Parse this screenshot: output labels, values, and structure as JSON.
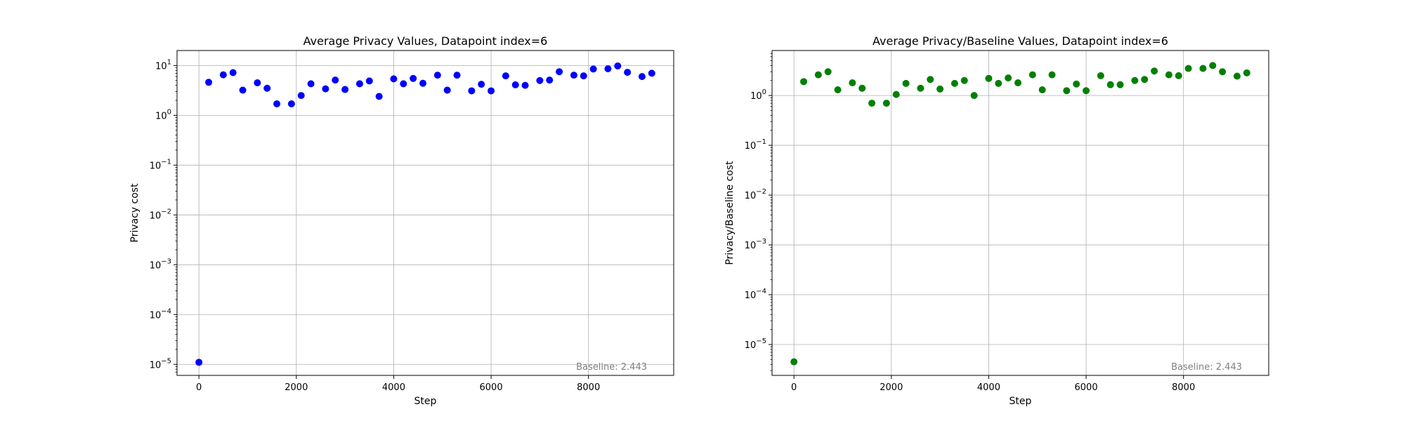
{
  "chart_data": [
    {
      "type": "scatter",
      "title": "Average Privacy Values, Datapoint index=6",
      "xlabel": "Step",
      "ylabel": "Privacy cost",
      "yscale": "log",
      "xlim": [
        -450,
        9750
      ],
      "ylim": [
        6e-06,
        20
      ],
      "xticks": [
        0,
        2000,
        4000,
        6000,
        8000
      ],
      "yticks": [
        1e-05,
        0.0001,
        0.001,
        0.01,
        0.1,
        1,
        10
      ],
      "ytick_labels": [
        {
          "base": "10",
          "exp": "−5"
        },
        {
          "base": "10",
          "exp": "−4"
        },
        {
          "base": "10",
          "exp": "−3"
        },
        {
          "base": "10",
          "exp": "−2"
        },
        {
          "base": "10",
          "exp": "−1"
        },
        {
          "base": "10",
          "exp": "0"
        },
        {
          "base": "10",
          "exp": "1"
        }
      ],
      "grid": true,
      "color": "#0000ff",
      "annotation": "Baseline: 2.443",
      "series": [
        {
          "x": [
            0,
            200,
            500,
            700,
            900,
            1200,
            1400,
            1600,
            1900,
            2100,
            2300,
            2600,
            2800,
            3000,
            3300,
            3500,
            3700,
            4000,
            4200,
            4400,
            4600,
            4900,
            5100,
            5300,
            5600,
            5800,
            6000,
            6300,
            6500,
            6700,
            7000,
            7200,
            7400,
            7700,
            7900,
            8100,
            8400,
            8600,
            8800,
            9100,
            9300
          ],
          "y": [
            1.1e-05,
            4.6,
            6.5,
            7.2,
            3.2,
            4.5,
            3.5,
            1.7,
            1.7,
            2.5,
            4.3,
            3.4,
            5.1,
            3.3,
            4.3,
            4.9,
            2.4,
            5.4,
            4.3,
            5.5,
            4.4,
            6.4,
            3.2,
            6.4,
            3.1,
            4.2,
            3.1,
            6.2,
            4.1,
            4.0,
            5.0,
            5.1,
            7.5,
            6.4,
            6.2,
            8.5,
            8.6,
            9.8,
            7.3,
            6.0,
            7.0
          ]
        }
      ]
    },
    {
      "type": "scatter",
      "title": "Average Privacy/Baseline Values, Datapoint index=6",
      "xlabel": "Step",
      "ylabel": "Privacy/Baseline cost",
      "yscale": "log",
      "xlim": [
        -450,
        9750
      ],
      "ylim": [
        2.4e-06,
        8
      ],
      "xticks": [
        0,
        2000,
        4000,
        6000,
        8000
      ],
      "yticks": [
        1e-05,
        0.0001,
        0.001,
        0.01,
        0.1,
        1
      ],
      "ytick_labels": [
        {
          "base": "10",
          "exp": "−5"
        },
        {
          "base": "10",
          "exp": "−4"
        },
        {
          "base": "10",
          "exp": "−3"
        },
        {
          "base": "10",
          "exp": "−2"
        },
        {
          "base": "10",
          "exp": "−1"
        },
        {
          "base": "10",
          "exp": "0"
        }
      ],
      "grid": true,
      "color": "#008000",
      "annotation": "Baseline: 2.443",
      "series": [
        {
          "x": [
            0,
            200,
            500,
            700,
            900,
            1200,
            1400,
            1600,
            1900,
            2100,
            2300,
            2600,
            2800,
            3000,
            3300,
            3500,
            3700,
            4000,
            4200,
            4400,
            4600,
            4900,
            5100,
            5300,
            5600,
            5800,
            6000,
            6300,
            6500,
            6700,
            7000,
            7200,
            7400,
            7700,
            7900,
            8100,
            8400,
            8600,
            8800,
            9100,
            9300
          ],
          "y": [
            4.5e-06,
            1.9,
            2.6,
            3.0,
            1.3,
            1.8,
            1.4,
            0.7,
            0.7,
            1.05,
            1.75,
            1.4,
            2.1,
            1.35,
            1.75,
            2.0,
            1.0,
            2.2,
            1.75,
            2.25,
            1.8,
            2.6,
            1.3,
            2.6,
            1.25,
            1.7,
            1.25,
            2.5,
            1.65,
            1.65,
            2.0,
            2.1,
            3.1,
            2.6,
            2.5,
            3.5,
            3.5,
            4.0,
            3.0,
            2.45,
            2.85
          ]
        }
      ]
    }
  ]
}
